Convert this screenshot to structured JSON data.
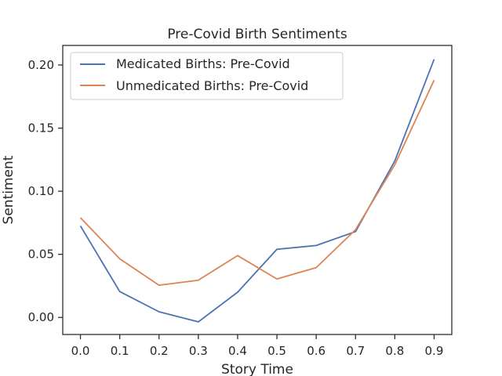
{
  "chart_data": {
    "type": "line",
    "title": "Pre-Covid Birth Sentiments",
    "xlabel": "Story Time",
    "ylabel": "Sentiment",
    "x": [
      0.0,
      0.1,
      0.2,
      0.3,
      0.4,
      0.5,
      0.6,
      0.7,
      0.8,
      0.9
    ],
    "xticks": [
      "0.0",
      "0.1",
      "0.2",
      "0.3",
      "0.4",
      "0.5",
      "0.6",
      "0.7",
      "0.8",
      "0.9"
    ],
    "yticks": [
      "0.00",
      "0.05",
      "0.10",
      "0.15",
      "0.20"
    ],
    "xlim": [
      -0.045,
      0.945
    ],
    "ylim": [
      -0.0135,
      0.2155
    ],
    "grid": false,
    "legend_position": "upper-left",
    "series": [
      {
        "name": "Medicated Births: Pre-Covid",
        "color": "#4c72b0",
        "values": [
          0.0725,
          0.0205,
          0.0045,
          -0.0035,
          0.02,
          0.054,
          0.057,
          0.068,
          0.124,
          0.2045
        ]
      },
      {
        "name": "Unmedicated Births: Pre-Covid",
        "color": "#dd8452",
        "values": [
          0.079,
          0.0465,
          0.0255,
          0.0295,
          0.049,
          0.0305,
          0.0395,
          0.0695,
          0.121,
          0.188
        ]
      }
    ]
  }
}
